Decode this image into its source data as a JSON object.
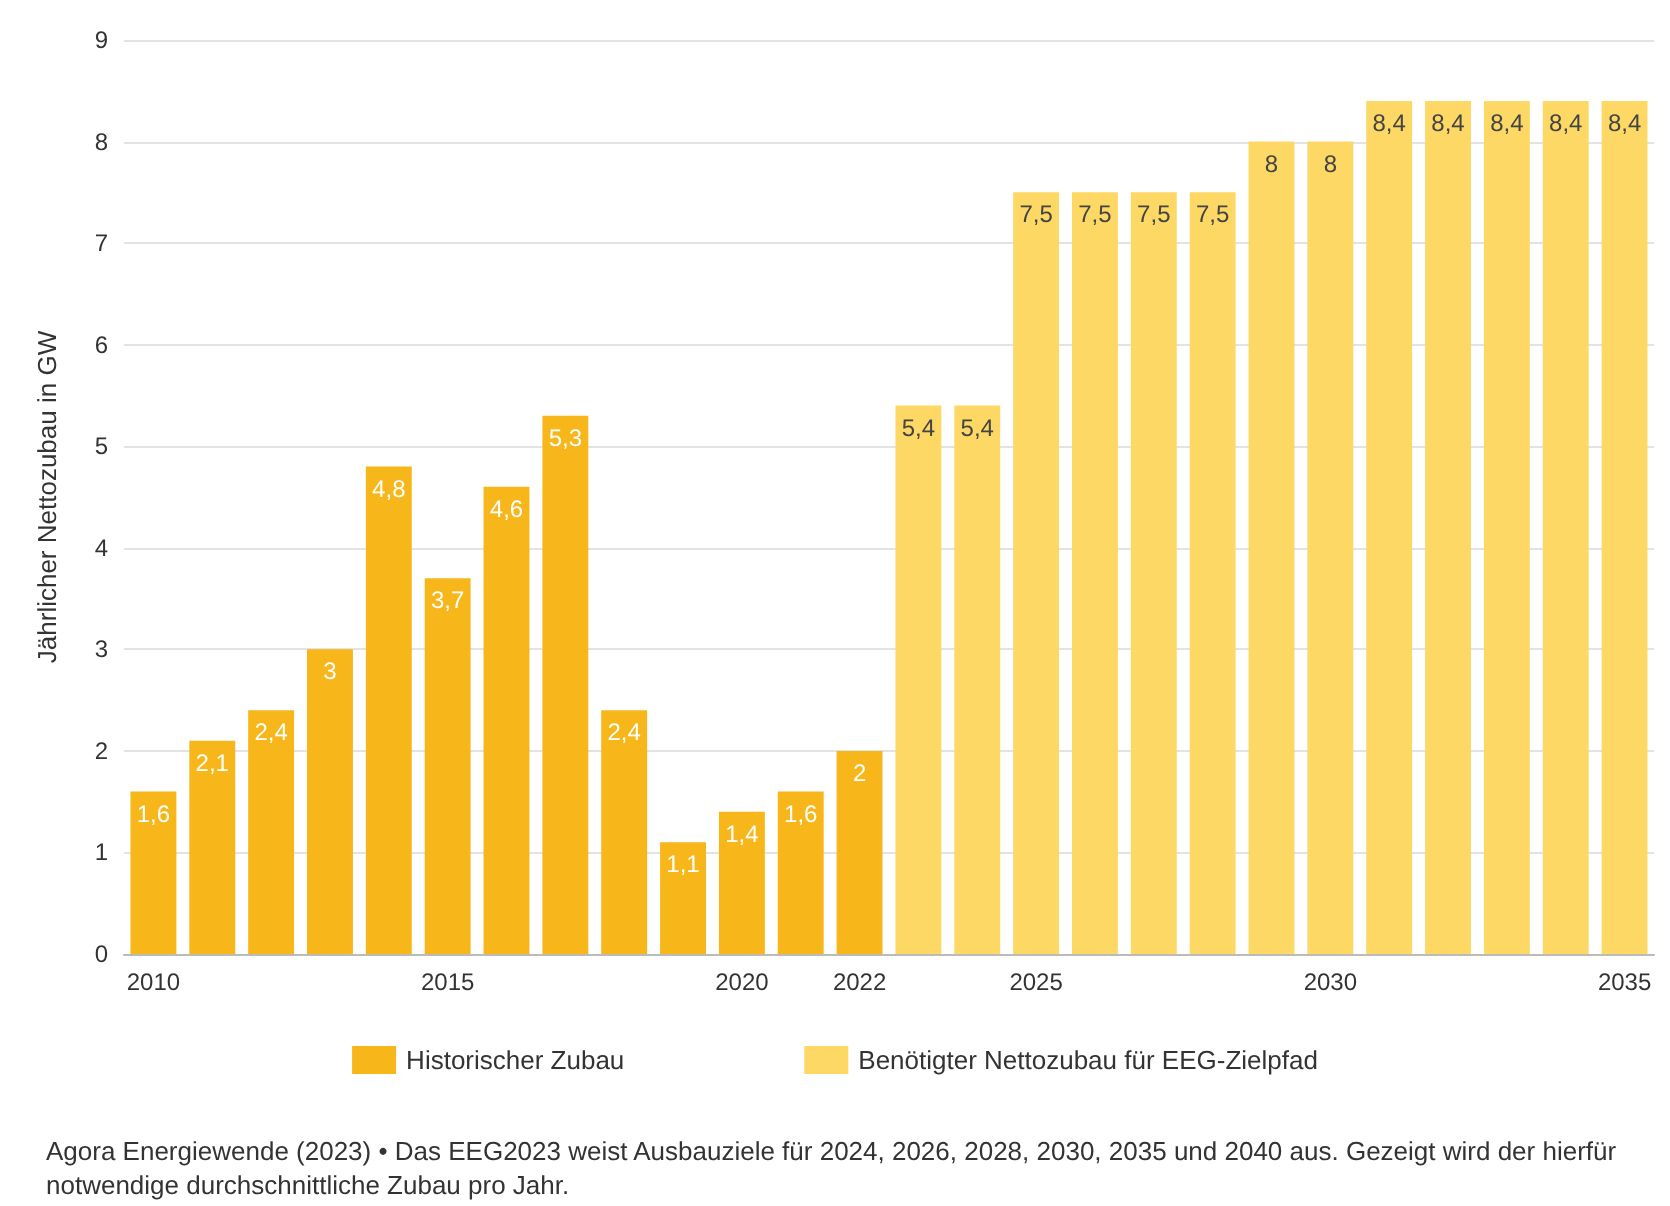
{
  "chart_data": {
    "type": "bar",
    "ylabel": "Jährlicher Nettozubau in GW",
    "categories": [
      "2010",
      null,
      null,
      null,
      null,
      "2015",
      null,
      null,
      null,
      null,
      "2020",
      null,
      "2022",
      null,
      null,
      "2025",
      null,
      null,
      null,
      null,
      "2030",
      null,
      null,
      null,
      null,
      "2035"
    ],
    "series": [
      {
        "name": "Historischer Zubau",
        "color": "#f7b619",
        "values": [
          1.6,
          2.1,
          2.4,
          3,
          4.8,
          3.7,
          4.6,
          5.3,
          2.4,
          1.1,
          1.4,
          1.6,
          2,
          null,
          null,
          null,
          null,
          null,
          null,
          null,
          null,
          null,
          null,
          null,
          null,
          null
        ],
        "value_labels": [
          "1,6",
          "2,1",
          "2,4",
          "3",
          "4,8",
          "3,7",
          "4,6",
          "5,3",
          "2,4",
          "1,1",
          "1,4",
          "1,6",
          "2",
          null,
          null,
          null,
          null,
          null,
          null,
          null,
          null,
          null,
          null,
          null,
          null,
          null
        ]
      },
      {
        "name": "Benötigter Nettozubau für EEG-Zielpfad",
        "color": "#fdd865",
        "values": [
          null,
          null,
          null,
          null,
          null,
          null,
          null,
          null,
          null,
          null,
          null,
          null,
          null,
          5.4,
          5.4,
          7.5,
          7.5,
          7.5,
          7.5,
          8,
          8,
          8.4,
          8.4,
          8.4,
          8.4,
          8.4
        ],
        "value_labels": [
          null,
          null,
          null,
          null,
          null,
          null,
          null,
          null,
          null,
          null,
          null,
          null,
          null,
          "5,4",
          "5,4",
          "7,5",
          "7,5",
          "7,5",
          "7,5",
          "8",
          "8",
          "8,4",
          "8,4",
          "8,4",
          "8,4",
          "8,4"
        ]
      }
    ],
    "ylim": [
      0,
      9
    ],
    "yticks": [
      0,
      1,
      2,
      3,
      4,
      5,
      6,
      7,
      8,
      9
    ],
    "grid": "y",
    "legend": "bottom",
    "annotations": [
      "Agora Energiewende (2023) • Das EEG2023 weist Ausbauziele für 2024, 2026, 2028, 2030, 2035 und 2040 aus. Gezeigt wird der hierfür notwendige durchschnittliche Zubau pro Jahr."
    ]
  }
}
